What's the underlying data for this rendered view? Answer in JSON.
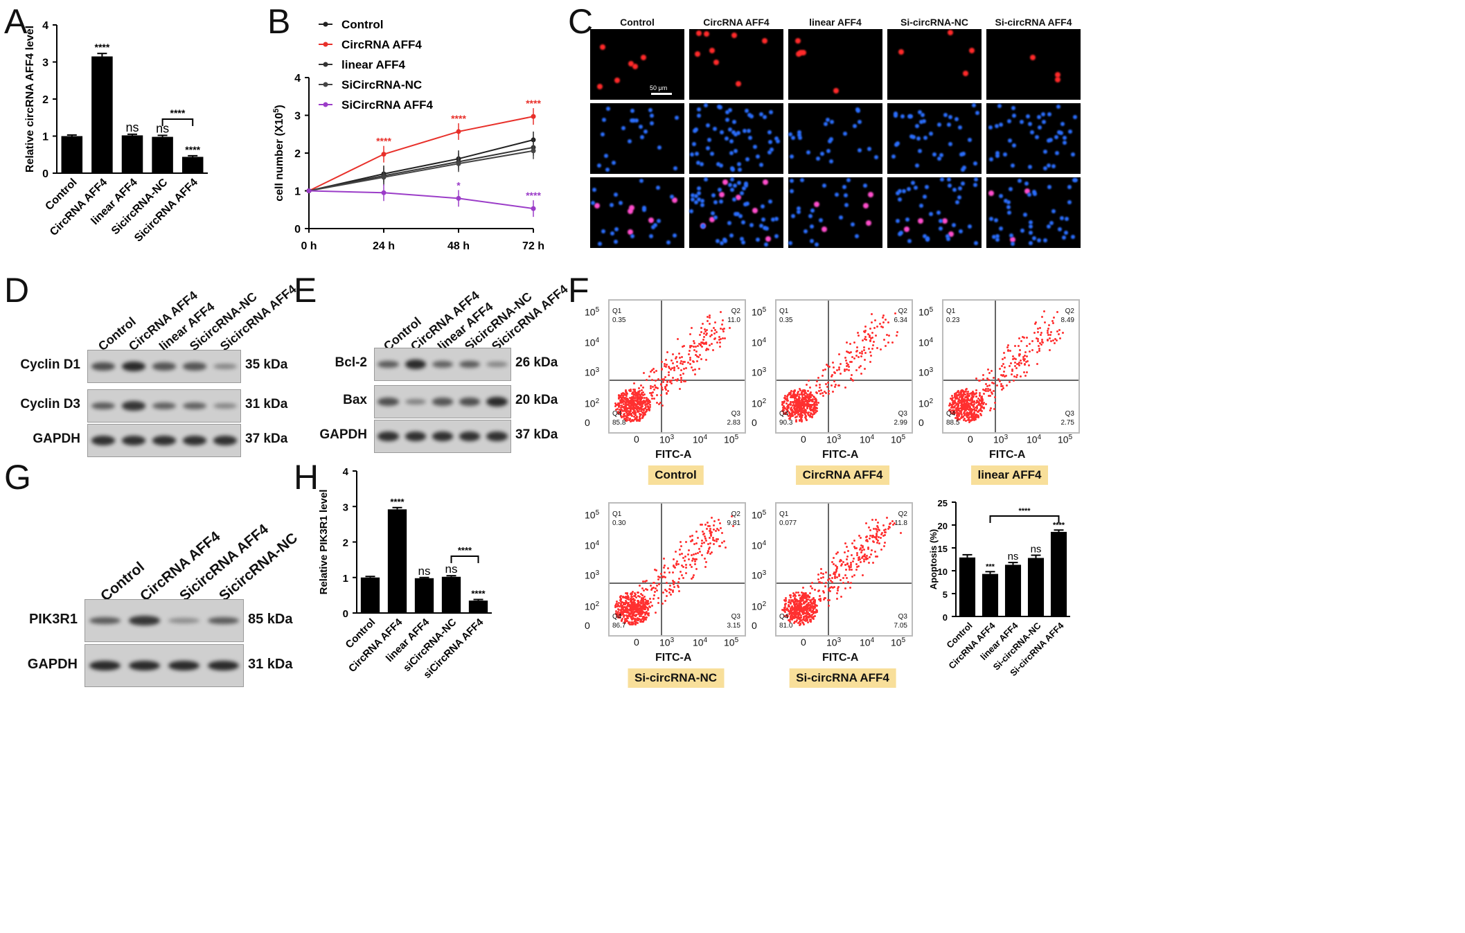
{
  "panels": {
    "A": "A",
    "B": "B",
    "C": "C",
    "D": "D",
    "E": "E",
    "F": "F",
    "G": "G",
    "H": "H"
  },
  "chart_data": [
    {
      "id": "A",
      "type": "bar",
      "ylabel": "Relative circRNA AFF4 level",
      "ylim": [
        0,
        4
      ],
      "yticks": [
        "0",
        "1",
        "2",
        "3",
        "4"
      ],
      "categories": [
        "Control",
        "CircRNA AFF4",
        "linear AFF4",
        "SicircRNA-NC",
        "SicircRNA AFF4"
      ],
      "values": [
        1.0,
        3.15,
        1.02,
        0.98,
        0.44
      ],
      "errors": [
        0.03,
        0.08,
        0.03,
        0.04,
        0.03
      ],
      "annotations": [
        "",
        "****",
        "ns",
        "ns",
        "****"
      ],
      "bracket": {
        "from": 3,
        "to": 4,
        "label": "****"
      }
    },
    {
      "id": "B",
      "type": "line",
      "ylabel": "cell number (X10^5)",
      "ylabel_main": "cell number (X10",
      "ylabel_sup": "5",
      "ylabel_tail": ")",
      "ylim": [
        0,
        4
      ],
      "yticks": [
        "0",
        "1",
        "2",
        "3",
        "4"
      ],
      "x": [
        "0 h",
        "24 h",
        "48 h",
        "72 h"
      ],
      "series": [
        {
          "name": "Control",
          "color": "#222222",
          "values": [
            1.0,
            1.45,
            1.85,
            2.35
          ],
          "stars": [
            "",
            "",
            "",
            ""
          ]
        },
        {
          "name": "CircRNA AFF4",
          "color": "#e8302a",
          "values": [
            1.0,
            1.97,
            2.57,
            2.97
          ],
          "stars": [
            "",
            "****",
            "****",
            "****"
          ]
        },
        {
          "name": "linear AFF4",
          "color": "#333333",
          "values": [
            1.0,
            1.4,
            1.77,
            2.15
          ],
          "stars": [
            "",
            "",
            "",
            ""
          ]
        },
        {
          "name": "SiCircRNA-NC",
          "color": "#444444",
          "values": [
            1.0,
            1.36,
            1.72,
            2.06
          ],
          "stars": [
            "",
            "",
            "",
            ""
          ]
        },
        {
          "name": "SiCircRNA AFF4",
          "color": "#9b3dc8",
          "values": [
            1.0,
            0.95,
            0.8,
            0.53
          ],
          "stars": [
            "",
            "",
            "*",
            "****"
          ]
        }
      ]
    },
    {
      "id": "H",
      "type": "bar",
      "ylabel": "Relative PIK3R1 level",
      "ylim": [
        0,
        4
      ],
      "yticks": [
        "0",
        "1",
        "2",
        "3",
        "4"
      ],
      "categories": [
        "Control",
        "CircRNA AFF4",
        "linear AFF4",
        "siCircRNA-NC",
        "siCircRNA AFF4"
      ],
      "values": [
        1.0,
        2.92,
        0.98,
        1.02,
        0.35
      ],
      "errors": [
        0.03,
        0.05,
        0.02,
        0.03,
        0.03
      ],
      "annotations": [
        "",
        "****",
        "ns",
        "ns",
        "****"
      ],
      "bracket": {
        "from": 3,
        "to": 4,
        "label": "****"
      }
    },
    {
      "id": "F-bar",
      "type": "bar",
      "ylabel": "Apoptosis (%)",
      "ylim": [
        0,
        25
      ],
      "yticks": [
        "0",
        "5",
        "10",
        "15",
        "20",
        "25"
      ],
      "categories": [
        "Control",
        "CircRNA AFF4",
        "linear AFF4",
        "Si-circRNA-NC",
        "Si-circRNA AFF4"
      ],
      "values": [
        12.9,
        9.3,
        11.3,
        12.8,
        18.5
      ],
      "errors": [
        0.6,
        0.5,
        0.5,
        0.6,
        0.4
      ],
      "annotations": [
        "",
        "***",
        "ns",
        "ns",
        "****"
      ],
      "bracket": {
        "from": 1,
        "to": 4,
        "label": "****"
      }
    }
  ],
  "microscopy": {
    "columns": [
      "Control",
      "CircRNA AFF4",
      "linear AFF4",
      "Si-circRNA-NC",
      "Si-circRNA AFF4"
    ],
    "scale_label": "50 μm"
  },
  "blot_D": {
    "lanes": [
      "Control",
      "CircRNA AFF4",
      "linear AFF4",
      "SicircRNA-NC",
      "SicircRNA AFF4"
    ],
    "rows": [
      {
        "label": "Cyclin  D1",
        "kda": "35 kDa",
        "intensity": [
          0.7,
          1.0,
          0.65,
          0.65,
          0.25
        ]
      },
      {
        "label": "Cyclin  D3",
        "kda": "31 kDa",
        "intensity": [
          0.6,
          0.9,
          0.55,
          0.55,
          0.25
        ]
      },
      {
        "label": "GAPDH",
        "kda": "37 kDa",
        "intensity": [
          0.95,
          0.95,
          0.95,
          0.95,
          0.95
        ]
      }
    ]
  },
  "blot_E": {
    "lanes": [
      "Control",
      "CircRNA AFF4",
      "linear AFF4",
      "SicircRNA-NC",
      "SicircRNA AFF4"
    ],
    "rows": [
      {
        "label": "Bcl-2",
        "kda": "26 kDa",
        "intensity": [
          0.6,
          1.0,
          0.55,
          0.6,
          0.25
        ]
      },
      {
        "label": "Bax",
        "kda": "20 kDa",
        "intensity": [
          0.7,
          0.3,
          0.65,
          0.7,
          1.0
        ]
      },
      {
        "label": "GAPDH",
        "kda": "37 kDa",
        "intensity": [
          0.95,
          0.95,
          0.95,
          0.95,
          0.95
        ]
      }
    ]
  },
  "blot_G": {
    "lanes": [
      "Control",
      "CircRNA AFF4",
      "SicircRNA AFF4",
      "SicircRNA-NC"
    ],
    "rows": [
      {
        "label": "PIK3R1",
        "kda": "85 kDa",
        "intensity": [
          0.6,
          0.9,
          0.2,
          0.6
        ]
      },
      {
        "label": "GAPDH",
        "kda": "31 kDa",
        "intensity": [
          1.0,
          1.0,
          1.0,
          1.0
        ]
      }
    ]
  },
  "flow": {
    "xaxis_label": "FITC-A",
    "yticks": [
      "10",
      "10",
      "10",
      "10",
      "0"
    ],
    "ytick_sups": [
      "5",
      "4",
      "3",
      "2",
      ""
    ],
    "xticks": [
      "0",
      "10",
      "10",
      "10"
    ],
    "xtick_sups": [
      "",
      "3",
      "4",
      "5"
    ],
    "plots": [
      {
        "group": "Control",
        "q1": "Q1",
        "q1v": "0.35",
        "q2": "Q2",
        "q2v": "11.0",
        "q3": "Q3",
        "q3v": "2.83",
        "q4": "Q4",
        "q4v": "85.8"
      },
      {
        "group": "CircRNA AFF4",
        "q1": "Q1",
        "q1v": "0.35",
        "q2": "Q2",
        "q2v": "6.34",
        "q3": "Q3",
        "q3v": "2.99",
        "q4": "Q4",
        "q4v": "90.3"
      },
      {
        "group": "linear AFF4",
        "q1": "Q1",
        "q1v": "0.23",
        "q2": "Q2",
        "q2v": "8.49",
        "q3": "Q3",
        "q3v": "2.75",
        "q4": "Q4",
        "q4v": "88.5"
      },
      {
        "group": "Si-circRNA-NC",
        "q1": "Q1",
        "q1v": "0.30",
        "q2": "Q2",
        "q2v": "9.81",
        "q3": "Q3",
        "q3v": "3.15",
        "q4": "Q4",
        "q4v": "86.7"
      },
      {
        "group": "Si-circRNA AFF4",
        "q1": "Q1",
        "q1v": "0.077",
        "q2": "Q2",
        "q2v": "11.8",
        "q3": "Q3",
        "q3v": "7.05",
        "q4": "Q4",
        "q4v": "81.0"
      }
    ]
  }
}
